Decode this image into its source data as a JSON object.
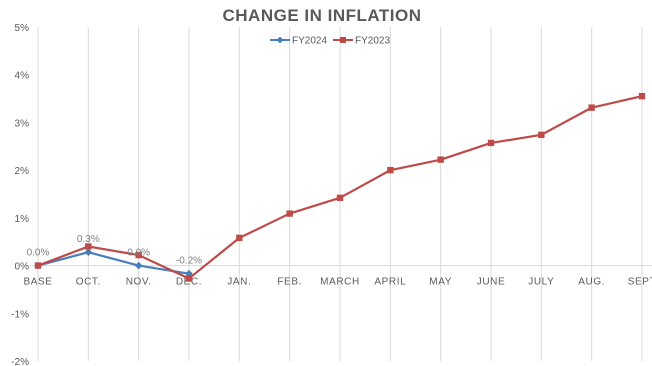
{
  "chart_data": {
    "type": "line",
    "title": "CHANGE IN INFLATION",
    "xlabel": "",
    "ylabel": "",
    "categories": [
      "BASE",
      "OCT.",
      "NOV.",
      "DEC.",
      "JAN.",
      "FEB.",
      "MARCH",
      "APRIL",
      "MAY",
      "JUNE",
      "JULY",
      "AUG.",
      "SEPT"
    ],
    "ylim": [
      -2,
      5
    ],
    "yticks": [
      -2,
      -1,
      0,
      1,
      2,
      3,
      4,
      5
    ],
    "ytick_labels": [
      "-2%",
      "-1%",
      "0%",
      "1%",
      "2%",
      "3%",
      "4%",
      "5%"
    ],
    "grid": "vertical",
    "legend_position": "top-center",
    "series": [
      {
        "name": "FY2024",
        "color": "#4a7ebb",
        "marker": "diamond",
        "values": [
          0.0,
          0.28,
          0.0,
          -0.17,
          null,
          null,
          null,
          null,
          null,
          null,
          null,
          null,
          null
        ],
        "data_labels": [
          "0.0%",
          "0.3%",
          "0.0%",
          "-0.2%",
          null,
          null,
          null,
          null,
          null,
          null,
          null,
          null,
          null
        ]
      },
      {
        "name": "FY2023",
        "color": "#be4b48",
        "marker": "square",
        "values": [
          0.0,
          0.4,
          0.22,
          -0.27,
          0.58,
          1.09,
          1.42,
          2.0,
          2.22,
          2.57,
          2.74,
          3.31,
          3.55
        ]
      }
    ]
  }
}
